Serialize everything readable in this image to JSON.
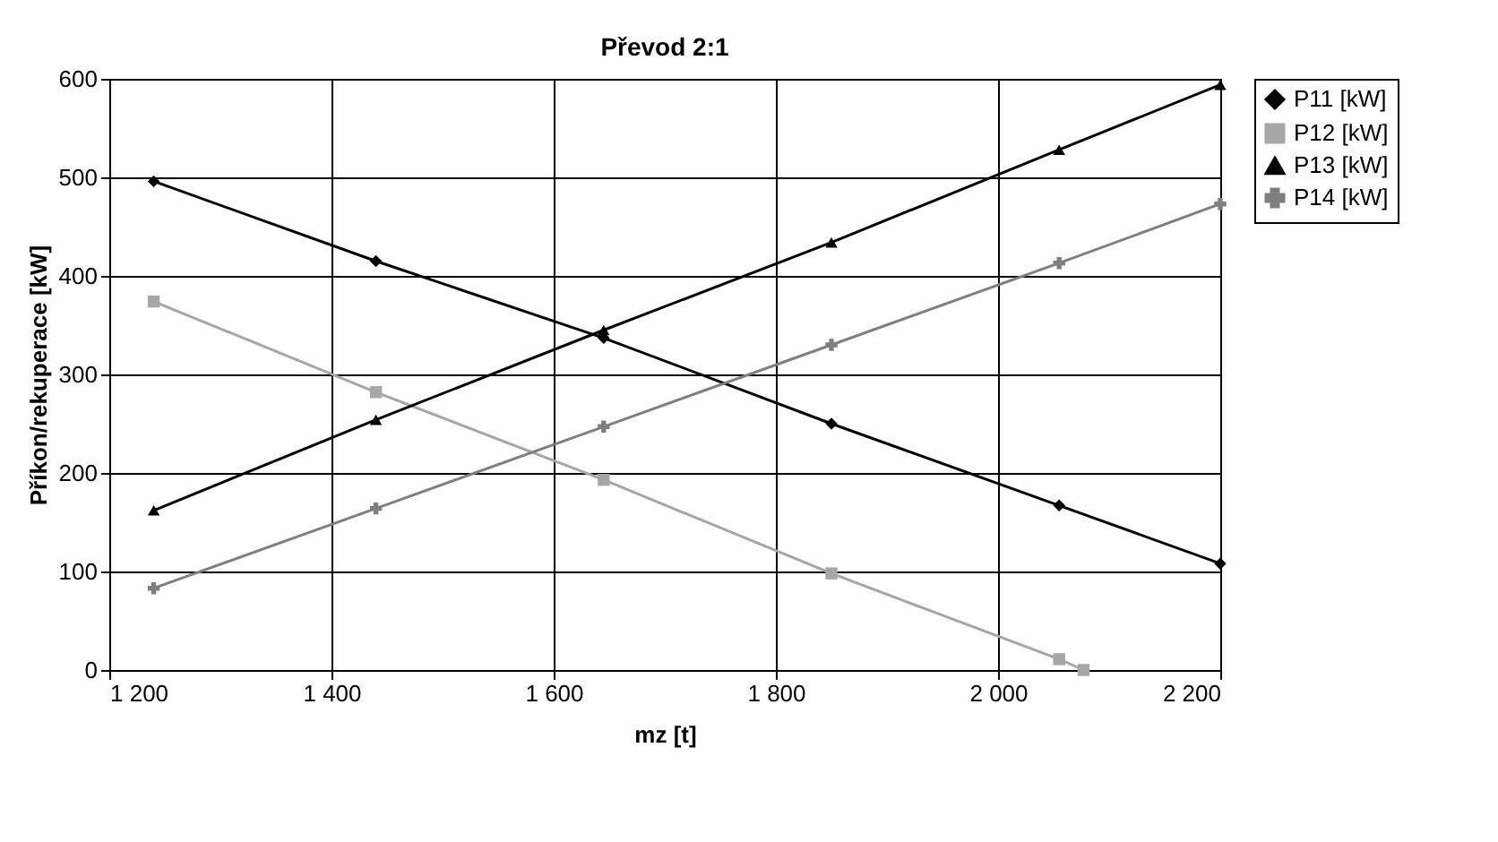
{
  "chart_data": {
    "type": "line",
    "title": "Převod 2:1",
    "xlabel": "mz [t]",
    "ylabel": "Příkon/rekuperace [kW]",
    "x": [
      1240,
      1440,
      1645,
      1850,
      2055,
      2200
    ],
    "series": [
      {
        "name": "P11 [kW]",
        "color": "#000000",
        "marker": "diamond",
        "values": [
          496,
          415,
          337,
          250,
          167,
          108
        ]
      },
      {
        "name": "P12 [kW]",
        "color": "#a6a6a6",
        "marker": "square",
        "x": [
          1240,
          1440,
          1645,
          1850,
          2055,
          2077
        ],
        "values": [
          374,
          282,
          193,
          98,
          11,
          0
        ]
      },
      {
        "name": "P13 [kW]",
        "color": "#000000",
        "marker": "triangle",
        "values": [
          162,
          254,
          345,
          434,
          528,
          594
        ]
      },
      {
        "name": "P14 [kW]",
        "color": "#7f7f7f",
        "marker": "cross",
        "values": [
          83,
          164,
          247,
          330,
          413,
          473
        ]
      }
    ],
    "xlim": [
      1200,
      2200
    ],
    "xticks": [
      {
        "value": 1200,
        "label": "1 200"
      },
      {
        "value": 1400,
        "label": "1 400"
      },
      {
        "value": 1600,
        "label": "1 600"
      },
      {
        "value": 1800,
        "label": "1 800"
      },
      {
        "value": 2000,
        "label": "2 000"
      },
      {
        "value": 2200,
        "label": "2 200"
      }
    ],
    "ylim": [
      0,
      600
    ],
    "yticks": [
      0,
      100,
      200,
      300,
      400,
      500,
      600
    ],
    "grid": true,
    "legend": "right",
    "line_style": "solid"
  }
}
